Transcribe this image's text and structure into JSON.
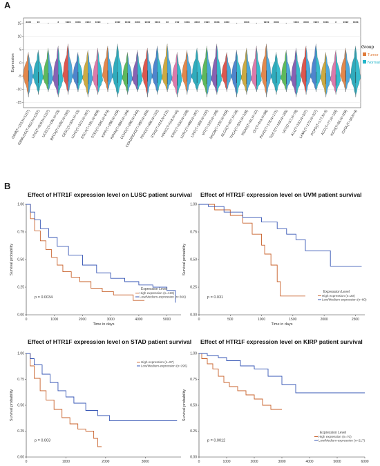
{
  "panel_a_letter": "A",
  "panel_b_letter": "B",
  "chart_data": [
    {
      "type": "violin",
      "ylabel": "Expression",
      "ylim": [
        -17,
        17
      ],
      "yticks": [
        -15,
        -10,
        -5,
        0,
        5,
        10,
        15
      ],
      "legend": {
        "title": "Group",
        "entries": [
          "Tumor",
          "Normal"
        ],
        "colors": [
          "#e07b39",
          "#22b5c9"
        ],
        "position": "right"
      },
      "grid": true,
      "categories": [
        {
          "label": "GBM(T=153,N=1157)",
          "sig": "****",
          "pink": false
        },
        {
          "label": "GBMLGG(T=662,N=1157)",
          "sig": "**",
          "pink": true
        },
        {
          "label": "LGG(T=509,N=1157)",
          "sig": "-",
          "pink": false
        },
        {
          "label": "UCEC(T=180,N=23)",
          "sig": "*",
          "pink": true
        },
        {
          "label": "BRCA(T=1092,N=292)",
          "sig": "****",
          "pink": true
        },
        {
          "label": "CESC(T=304,N=13)",
          "sig": "****",
          "pink": false
        },
        {
          "label": "LUAD(T=513,N=397)",
          "sig": "****",
          "pink": true
        },
        {
          "label": "ESCA(T=181,N=668)",
          "sig": "****",
          "pink": true
        },
        {
          "label": "STES(T=595,N=879)",
          "sig": "-",
          "pink": false
        },
        {
          "label": "KIRP(T=288,N=168)",
          "sig": "****",
          "pink": true
        },
        {
          "label": "KIPAN(T=884,N=169)",
          "sig": "****",
          "pink": false
        },
        {
          "label": "COAD(T=288,N=349)",
          "sig": "****",
          "pink": false
        },
        {
          "label": "COADREAD(T=380,N=359)",
          "sig": "****",
          "pink": false
        },
        {
          "label": "PRAD(T=495,N=152)",
          "sig": "****",
          "pink": false
        },
        {
          "label": "STAD(T=414,N=211)",
          "sig": "**",
          "pink": false
        },
        {
          "label": "HNSC(T=518,N=44)",
          "sig": "***",
          "pink": false
        },
        {
          "label": "KIRC(T=530,N=168)",
          "sig": "****",
          "pink": true
        },
        {
          "label": "LUSC(T=498,N=397)",
          "sig": "****",
          "pink": false
        },
        {
          "label": "LIHC(T=369,N=160)",
          "sig": "****",
          "pink": true
        },
        {
          "label": "WT(T=120,N=168)",
          "sig": "****",
          "pink": false
        },
        {
          "label": "SKCM(T=102,N=558)",
          "sig": "****",
          "pink": false
        },
        {
          "label": "BLCA(T=407,N=28)",
          "sig": "-",
          "pink": false
        },
        {
          "label": "THCA(T=504,N=338)",
          "sig": "****",
          "pink": false
        },
        {
          "label": "READ(T=92,N=10)",
          "sig": "-",
          "pink": false
        },
        {
          "label": "OV(T=419,N=88)",
          "sig": "****",
          "pink": false
        },
        {
          "label": "PAAD(T=178,N=171)",
          "sig": "****",
          "pink": false
        },
        {
          "label": "TGCT(T=148,N=165)",
          "sig": "-",
          "pink": false
        },
        {
          "label": "UCS(T=57,N=78)",
          "sig": "****",
          "pink": false
        },
        {
          "label": "ALL(T=132,N=337)",
          "sig": "****",
          "pink": false
        },
        {
          "label": "LAML(T=173,N=337)",
          "sig": "****",
          "pink": false
        },
        {
          "label": "PCPG(T=177,N=3)",
          "sig": "****",
          "pink": false
        },
        {
          "label": "ACC(T=77,N=128)",
          "sig": "*",
          "pink": false
        },
        {
          "label": "KICH(T=66,N=168)",
          "sig": "****",
          "pink": false
        },
        {
          "label": "CHOL(T=36,N=9)",
          "sig": "****",
          "pink": false
        }
      ]
    },
    {
      "type": "line",
      "subtype": "kaplan-meier",
      "title": "Effect of HTR1F expression level on LUSC patient survival",
      "xlabel": "Time in days",
      "ylabel": "Survival probability",
      "xlim": [
        0,
        5500
      ],
      "ylim": [
        0,
        1
      ],
      "xticks": [
        0,
        1000,
        2000,
        3000,
        4000,
        5000
      ],
      "yticks": [
        "0.00",
        "0.25",
        "0.50",
        "0.75",
        "1.00"
      ],
      "pvalue": "p = 0.0034",
      "legend": {
        "title": "Expression Level",
        "position": "bottom-right"
      },
      "series": [
        {
          "name": "High expression (n=126)",
          "color": "#c8602a",
          "x": [
            0,
            150,
            300,
            500,
            700,
            900,
            1100,
            1300,
            1600,
            1900,
            2300,
            2700,
            3100,
            3800,
            4200
          ],
          "y": [
            1.0,
            0.87,
            0.76,
            0.67,
            0.59,
            0.52,
            0.45,
            0.39,
            0.34,
            0.3,
            0.24,
            0.21,
            0.18,
            0.13,
            0.13
          ]
        },
        {
          "name": "Low/Medium-expression (n=366)",
          "color": "#3454b4",
          "x": [
            0,
            150,
            300,
            500,
            800,
            1100,
            1500,
            2000,
            2500,
            3000,
            3500,
            4000,
            4500,
            5000,
            5300
          ],
          "y": [
            1.0,
            0.93,
            0.86,
            0.78,
            0.7,
            0.62,
            0.54,
            0.45,
            0.38,
            0.33,
            0.3,
            0.27,
            0.25,
            0.22,
            0.11
          ]
        }
      ]
    },
    {
      "type": "line",
      "subtype": "kaplan-meier",
      "title": "Effect of HTR1F expression level on UVM patient survival",
      "xlabel": "Time in days",
      "ylabel": "Survival probability",
      "xlim": [
        0,
        2650
      ],
      "ylim": [
        0,
        1
      ],
      "xticks": [
        0,
        500,
        1000,
        1500,
        2000,
        2500
      ],
      "yticks": [
        "0.00",
        "0.25",
        "0.50",
        "0.75",
        "1.00"
      ],
      "pvalue": "p = 0.031",
      "legend": {
        "title": "Expression Level",
        "position": "bottom-right"
      },
      "series": [
        {
          "name": "High expression (n=20)",
          "color": "#c8602a",
          "x": [
            0,
            250,
            500,
            700,
            850,
            1000,
            1050,
            1150,
            1250,
            1300,
            1700
          ],
          "y": [
            1.0,
            0.95,
            0.9,
            0.83,
            0.73,
            0.63,
            0.55,
            0.45,
            0.3,
            0.17,
            0.17
          ]
        },
        {
          "name": "Low/Medium-expression (n=60)",
          "color": "#3454b4",
          "x": [
            0,
            150,
            400,
            700,
            1000,
            1250,
            1400,
            1550,
            1700,
            2000,
            2100,
            2600
          ],
          "y": [
            1.0,
            0.98,
            0.93,
            0.88,
            0.84,
            0.78,
            0.73,
            0.68,
            0.58,
            0.58,
            0.44,
            0.44
          ]
        }
      ]
    },
    {
      "type": "line",
      "subtype": "kaplan-meier",
      "title": "Effect of HTR1F expression level on STAD patient survival",
      "xlabel": "",
      "ylabel": "Survival probability",
      "xlim": [
        0,
        3900
      ],
      "ylim": [
        0,
        1
      ],
      "xticks": [
        0,
        1000,
        2000,
        3000
      ],
      "yticks": [
        "0.00",
        "0.25",
        "0.50",
        "0.75",
        "1.00"
      ],
      "pvalue": "p = 0.003",
      "legend": {
        "title": "",
        "position": "top-right"
      },
      "series": [
        {
          "name": "High expression (n=97)",
          "color": "#c8602a",
          "x": [
            0,
            100,
            200,
            350,
            500,
            700,
            900,
            1100,
            1300,
            1500,
            1700,
            1800,
            1900
          ],
          "y": [
            1.0,
            0.88,
            0.76,
            0.64,
            0.55,
            0.46,
            0.38,
            0.32,
            0.27,
            0.25,
            0.18,
            0.1,
            0.1
          ]
        },
        {
          "name": "Low/Medium-expression (n=295)",
          "color": "#3454b4",
          "x": [
            0,
            100,
            200,
            400,
            600,
            800,
            1000,
            1200,
            1500,
            1800,
            2100,
            3800
          ],
          "y": [
            1.0,
            0.95,
            0.89,
            0.8,
            0.72,
            0.64,
            0.58,
            0.52,
            0.45,
            0.4,
            0.35,
            0.35
          ]
        }
      ]
    },
    {
      "type": "line",
      "subtype": "kaplan-meier",
      "title": "Effect of HTR1F expression level on KIRP patient survival",
      "xlabel": "",
      "ylabel": "Survival probability",
      "xlim": [
        0,
        6000
      ],
      "ylim": [
        0,
        1
      ],
      "xticks": [
        0,
        1000,
        2000,
        3000,
        4000,
        5000,
        6000
      ],
      "yticks": [
        "0.00",
        "0.25",
        "0.50",
        "0.75",
        "1.00"
      ],
      "pvalue": "p = 0.0012",
      "legend": {
        "title": "Expression Level",
        "position": "bottom-right"
      },
      "series": [
        {
          "name": "High expression (n=70)",
          "color": "#c8602a",
          "x": [
            0,
            100,
            300,
            500,
            700,
            900,
            1100,
            1400,
            1700,
            2000,
            2300,
            2600,
            3000
          ],
          "y": [
            1.0,
            0.95,
            0.9,
            0.85,
            0.78,
            0.72,
            0.68,
            0.64,
            0.6,
            0.56,
            0.5,
            0.46,
            0.46
          ]
        },
        {
          "name": "Low/Medium-expression (n=217)",
          "color": "#3454b4",
          "x": [
            0,
            300,
            700,
            1000,
            1500,
            2000,
            2500,
            3000,
            3500,
            6000
          ],
          "y": [
            1.0,
            0.98,
            0.96,
            0.93,
            0.88,
            0.85,
            0.78,
            0.7,
            0.62,
            0.62
          ]
        }
      ]
    }
  ]
}
